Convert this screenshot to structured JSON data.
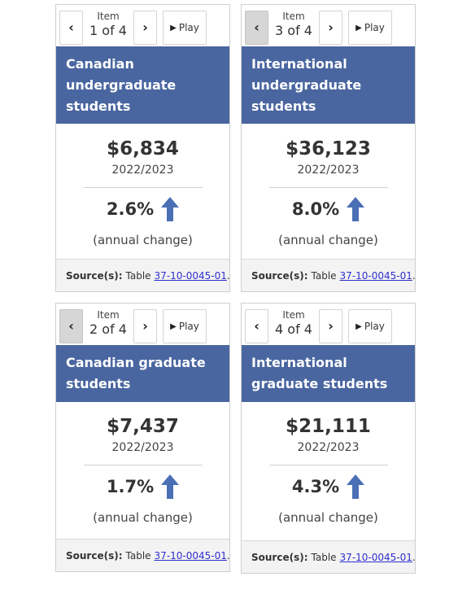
{
  "cards": [
    {
      "item_label": "Item",
      "counter": "1 of 4",
      "prev_active": false,
      "play_label": "Play",
      "title": "Canadian undergraduate students",
      "amount": "$6,834",
      "year": "2022/2023",
      "change": "2.6%",
      "change_direction": "up",
      "change_note": "(annual change)",
      "source_label": "Source(s):",
      "source_prefix": "Table",
      "source_link": "37-10-0045-01",
      "source_suffix": "."
    },
    {
      "item_label": "Item",
      "counter": "3 of 4",
      "prev_active": true,
      "play_label": "Play",
      "title": "International undergraduate students",
      "amount": "$36,123",
      "year": "2022/2023",
      "change": "8.0%",
      "change_direction": "up",
      "change_note": "(annual change)",
      "source_label": "Source(s):",
      "source_prefix": "Table",
      "source_link": "37-10-0045-01",
      "source_suffix": "."
    },
    {
      "item_label": "Item",
      "counter": "2 of 4",
      "prev_active": true,
      "play_label": "Play",
      "title": "Canadian graduate students",
      "amount": "$7,437",
      "year": "2022/2023",
      "change": "1.7%",
      "change_direction": "up",
      "change_note": "(annual change)",
      "source_label": "Source(s):",
      "source_prefix": "Table",
      "source_link": "37-10-0045-01",
      "source_suffix": "."
    },
    {
      "item_label": "Item",
      "counter": "4 of 4",
      "prev_active": false,
      "play_label": "Play",
      "title": "International graduate students",
      "amount": "$21,111",
      "year": "2022/2023",
      "change": "4.3%",
      "change_direction": "up",
      "change_note": "(annual change)",
      "source_label": "Source(s):",
      "source_prefix": "Table",
      "source_link": "37-10-0045-01",
      "source_suffix": "."
    }
  ],
  "colors": {
    "header_bg": "#4a66a0",
    "arrow": "#4a6fb5",
    "link": "#2e2ed0",
    "active_prev_bg": "#d6d6d6"
  },
  "icons": {
    "prev": "chevron-left-icon",
    "next": "chevron-right-icon",
    "play": "play-icon",
    "change": "arrow-up-icon"
  }
}
